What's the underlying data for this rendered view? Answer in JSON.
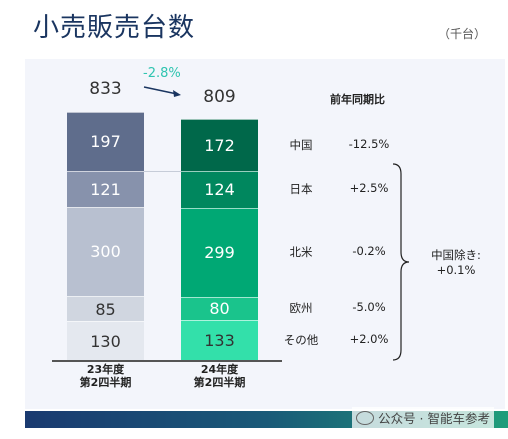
{
  "title": "小売販売台数",
  "unit": "（千台）",
  "header_label": "前年同期比",
  "change_label": "-2.8%",
  "note": [
    "中国除き:",
    "+0.1%"
  ],
  "watermark": "公众号 · 智能车参考",
  "colors": {
    "title": "#1a3560",
    "accent": "#2fc4b0",
    "bar_2023": [
      "#5f6d8c",
      "#8792ac",
      "#b8c0d0",
      "#d0d6e0",
      "#e4e8ef"
    ],
    "bar_2024": [
      "#00684a",
      "#00875e",
      "#00a874",
      "#1ac48c",
      "#33e0aa"
    ]
  },
  "chart_data": {
    "type": "bar",
    "stacked": true,
    "categories": [
      "23年度第2四半期",
      "24年度第2四半期"
    ],
    "category_lines": [
      [
        "23年度",
        "第2四半期"
      ],
      [
        "24年度",
        "第2四半期"
      ]
    ],
    "totals": [
      833,
      809
    ],
    "series": [
      {
        "name": "中国",
        "values": [
          197,
          172
        ],
        "yoy": "-12.5%"
      },
      {
        "name": "日本",
        "values": [
          121,
          124
        ],
        "yoy": "+2.5%"
      },
      {
        "name": "北米",
        "values": [
          300,
          299
        ],
        "yoy": "-0.2%"
      },
      {
        "name": "欧州",
        "values": [
          85,
          80
        ],
        "yoy": "-5.0%"
      },
      {
        "name": "その他",
        "values": [
          130,
          133
        ],
        "yoy": "+2.0%"
      }
    ]
  }
}
